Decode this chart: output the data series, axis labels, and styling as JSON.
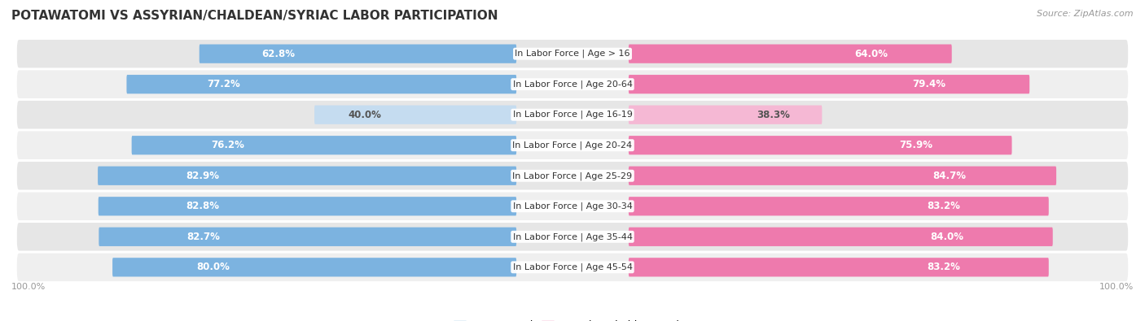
{
  "title": "POTAWATOMI VS ASSYRIAN/CHALDEAN/SYRIAC LABOR PARTICIPATION",
  "source": "Source: ZipAtlas.com",
  "categories": [
    "In Labor Force | Age > 16",
    "In Labor Force | Age 20-64",
    "In Labor Force | Age 16-19",
    "In Labor Force | Age 20-24",
    "In Labor Force | Age 25-29",
    "In Labor Force | Age 30-34",
    "In Labor Force | Age 35-44",
    "In Labor Force | Age 45-54"
  ],
  "potawatomi": [
    62.8,
    77.2,
    40.0,
    76.2,
    82.9,
    82.8,
    82.7,
    80.0
  ],
  "assyrian": [
    64.0,
    79.4,
    38.3,
    75.9,
    84.7,
    83.2,
    84.0,
    83.2
  ],
  "color_potawatomi_dark": "#7CB3E0",
  "color_potawatomi_light": "#C5DCF0",
  "color_assyrian_dark": "#EE7AAD",
  "color_assyrian_light": "#F5B8D4",
  "bg_row_color": "#E8E8E8",
  "title_color": "#333333",
  "label_fontsize": 8.5,
  "category_fontsize": 8.0,
  "title_fontsize": 11,
  "source_fontsize": 8,
  "axis_tick_fontsize": 8,
  "threshold": 50.0
}
